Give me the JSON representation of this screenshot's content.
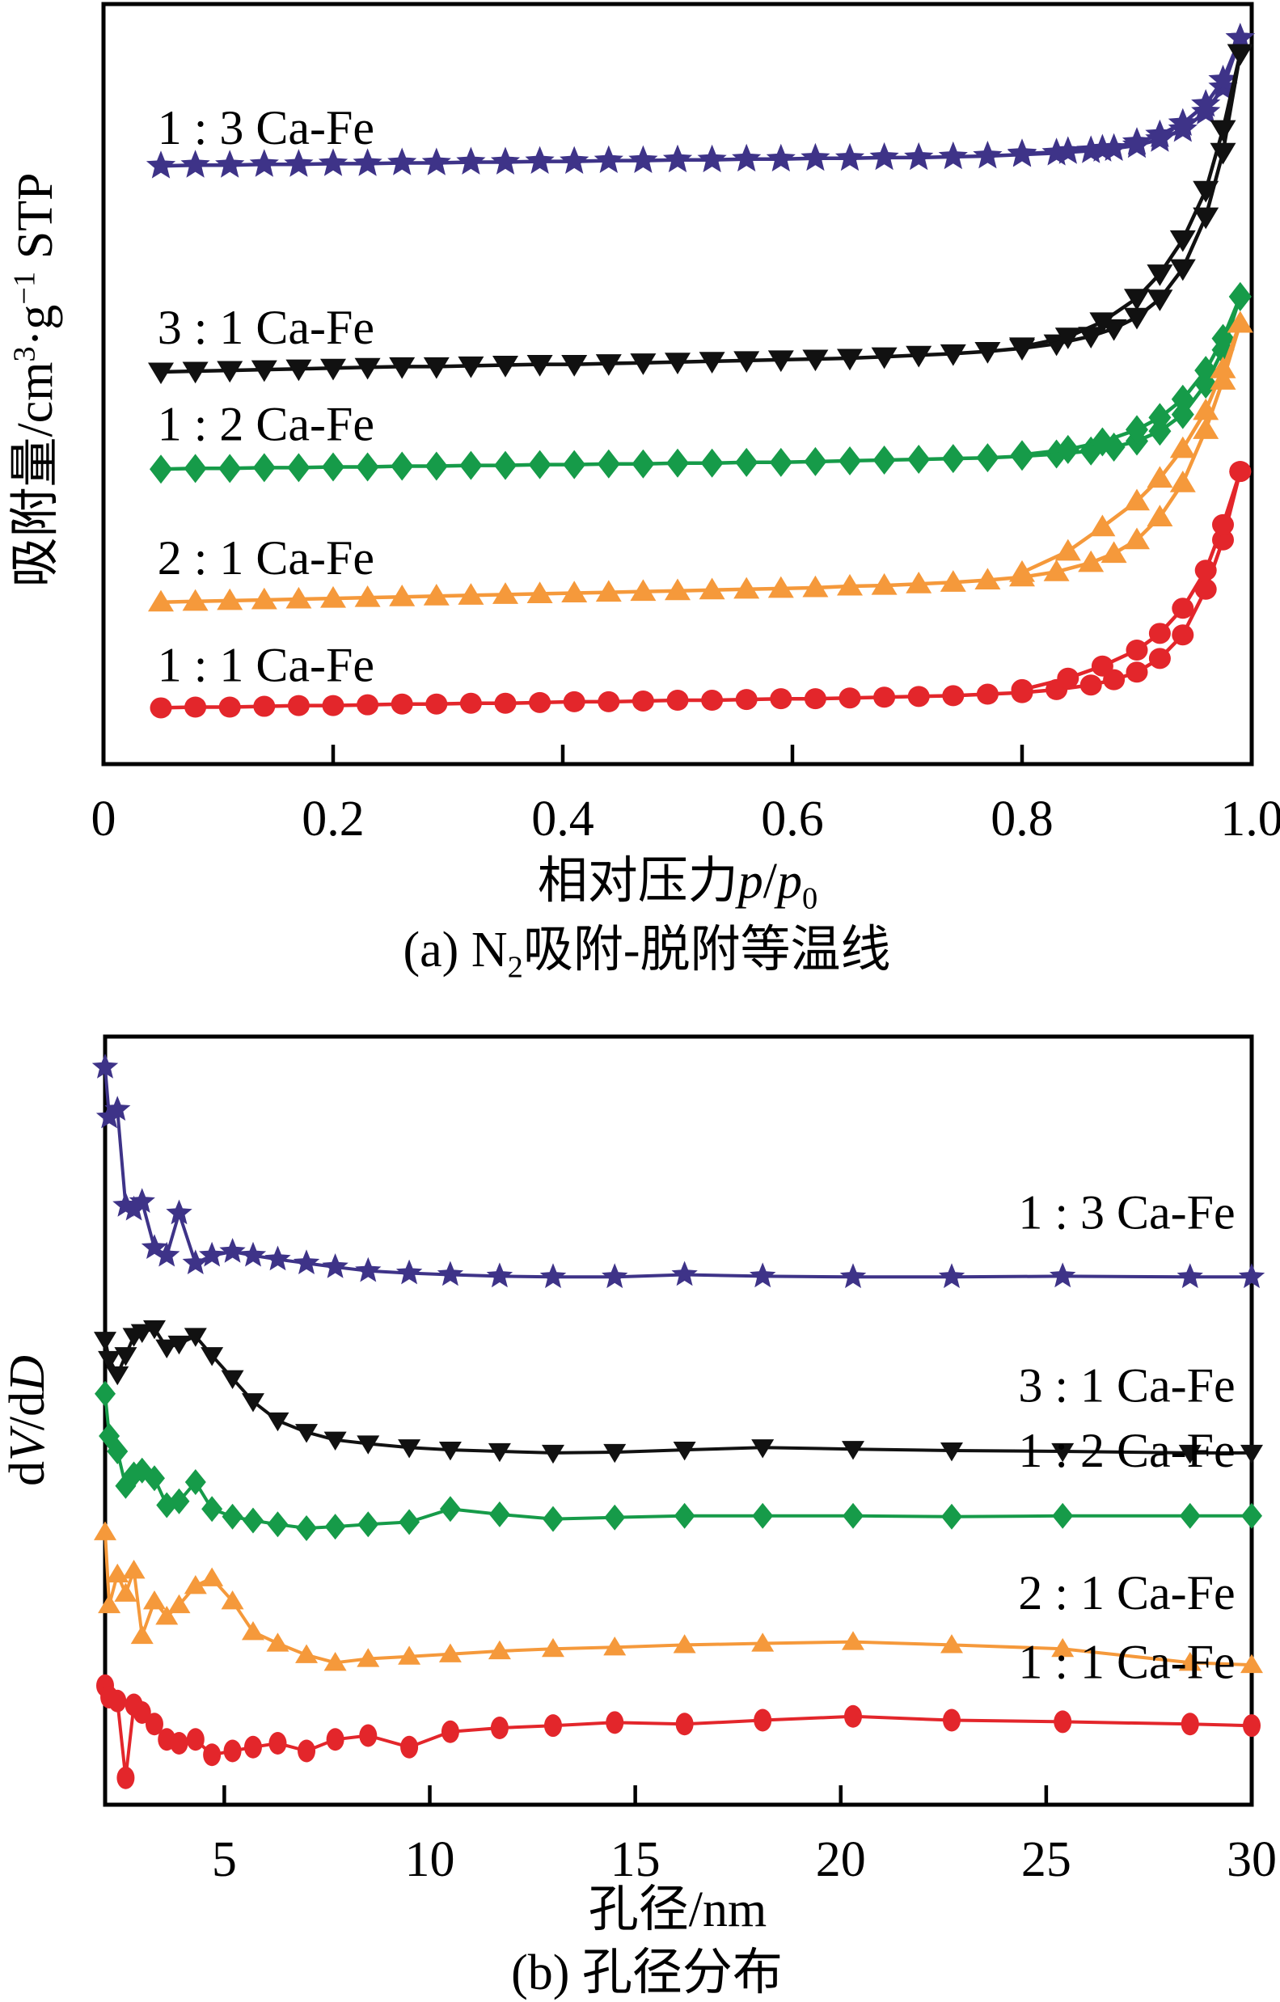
{
  "page": {
    "background": "#ffffff",
    "text_color": "#000000"
  },
  "chart_data": [
    {
      "type": "line",
      "id": "n2-isotherms",
      "caption": "(a) N2吸附-脱附等温线",
      "caption_segments": [
        {
          "t": "(a) N"
        },
        {
          "t": "2",
          "sub": true
        },
        {
          "t": "吸附-脱附等温线"
        }
      ],
      "xlabel": "相对压力p/p0",
      "xlabel_segments": [
        {
          "t": "相对压力"
        },
        {
          "t": "p",
          "i": true
        },
        {
          "t": "/"
        },
        {
          "t": "p",
          "i": true
        },
        {
          "t": "0",
          "sub": true
        }
      ],
      "ylabel": "吸附量/cm3·g−1 STP",
      "ylabel_segments": [
        {
          "t": "吸附量/cm"
        },
        {
          "t": "3",
          "sup": true
        },
        {
          "t": "·g"
        },
        {
          "t": "−1",
          "sup": true
        },
        {
          "t": " STP"
        }
      ],
      "y_units_note": "no numeric y scale shown; curves vertically offset, values in % of axis height",
      "xlim": [
        0,
        1.0
      ],
      "ylim": [
        0,
        100
      ],
      "xticks": [
        0,
        0.2,
        0.4,
        0.6,
        0.8,
        1.0
      ],
      "xtick_labels": [
        "0",
        "0.2",
        "0.4",
        "0.6",
        "0.8",
        "1.0"
      ],
      "yticks": [],
      "grid": false,
      "legend_position": "labels above each curve, left side",
      "x_adsorption": [
        0.05,
        0.08,
        0.11,
        0.14,
        0.17,
        0.2,
        0.23,
        0.26,
        0.29,
        0.32,
        0.35,
        0.38,
        0.41,
        0.44,
        0.47,
        0.5,
        0.53,
        0.56,
        0.59,
        0.62,
        0.65,
        0.68,
        0.71,
        0.74,
        0.77,
        0.8,
        0.83,
        0.86,
        0.88,
        0.9,
        0.92,
        0.94,
        0.96,
        0.975,
        0.99
      ],
      "x_desorption": [
        0.99,
        0.975,
        0.96,
        0.94,
        0.92,
        0.9,
        0.87,
        0.84,
        0.8
      ],
      "series": [
        {
          "name": "1 : 3 Ca-Fe",
          "color": "#3E3388",
          "marker": "star",
          "label_pos": {
            "x": 0.047,
            "y": 81.6
          },
          "y_adsorption": [
            78.7,
            78.8,
            78.8,
            78.9,
            78.9,
            79.0,
            79.0,
            79.1,
            79.1,
            79.2,
            79.2,
            79.3,
            79.3,
            79.4,
            79.4,
            79.5,
            79.5,
            79.6,
            79.6,
            79.7,
            79.7,
            79.8,
            79.8,
            79.9,
            80.0,
            80.2,
            80.4,
            80.7,
            81.0,
            81.4,
            82.2,
            83.5,
            85.8,
            89.0,
            95.5
          ],
          "y_desorption": [
            95.5,
            90.0,
            86.8,
            84.3,
            82.8,
            81.8,
            80.9,
            80.6,
            80.3
          ]
        },
        {
          "name": "3 : 1 Ca-Fe",
          "color": "#111111",
          "marker": "triangle-down",
          "label_pos": {
            "x": 0.047,
            "y": 55.3
          },
          "y_adsorption": [
            51.6,
            51.7,
            51.8,
            51.9,
            52.0,
            52.1,
            52.2,
            52.3,
            52.3,
            52.4,
            52.5,
            52.6,
            52.6,
            52.7,
            52.8,
            52.9,
            53.0,
            53.1,
            53.2,
            53.3,
            53.4,
            53.6,
            53.8,
            54.0,
            54.3,
            54.7,
            55.3,
            56.3,
            57.3,
            58.8,
            61.2,
            65.2,
            72.0,
            80.5,
            93.5
          ],
          "y_desorption": [
            93.5,
            83.5,
            75.5,
            69.0,
            64.5,
            61.3,
            58.2,
            56.2,
            54.9
          ]
        },
        {
          "name": "1 : 2 Ca-Fe",
          "color": "#169B49",
          "marker": "diamond",
          "label_pos": {
            "x": 0.047,
            "y": 42.6
          },
          "y_adsorption": [
            38.8,
            38.9,
            38.9,
            39.0,
            39.0,
            39.1,
            39.1,
            39.2,
            39.2,
            39.3,
            39.3,
            39.4,
            39.4,
            39.5,
            39.5,
            39.6,
            39.6,
            39.7,
            39.7,
            39.8,
            39.9,
            40.0,
            40.1,
            40.2,
            40.3,
            40.5,
            40.8,
            41.2,
            41.7,
            42.5,
            43.8,
            46.0,
            50.0,
            54.5,
            61.5
          ],
          "y_desorption": [
            61.5,
            56.0,
            51.8,
            48.0,
            45.6,
            44.0,
            42.4,
            41.4,
            40.7
          ]
        },
        {
          "name": "2 : 1 Ca-Fe",
          "color": "#F5993B",
          "marker": "triangle-up",
          "label_pos": {
            "x": 0.047,
            "y": 25.0
          },
          "y_adsorption": [
            21.3,
            21.4,
            21.5,
            21.6,
            21.7,
            21.8,
            21.9,
            22.0,
            22.1,
            22.2,
            22.3,
            22.4,
            22.5,
            22.6,
            22.7,
            22.8,
            22.9,
            23.0,
            23.1,
            23.2,
            23.4,
            23.5,
            23.7,
            23.9,
            24.2,
            24.6,
            25.3,
            26.5,
            27.7,
            29.5,
            32.5,
            37.0,
            44.0,
            50.5,
            58.0
          ],
          "y_desorption": [
            58.0,
            52.0,
            46.5,
            41.5,
            37.6,
            34.6,
            31.2,
            28.0,
            25.2
          ]
        },
        {
          "name": "1 : 1 Ca-Fe",
          "color": "#E3262B",
          "marker": "circle",
          "label_pos": {
            "x": 0.047,
            "y": 10.9
          },
          "y_adsorption": [
            7.4,
            7.5,
            7.5,
            7.6,
            7.7,
            7.7,
            7.8,
            7.9,
            7.9,
            8.0,
            8.0,
            8.1,
            8.2,
            8.2,
            8.3,
            8.4,
            8.4,
            8.5,
            8.6,
            8.6,
            8.7,
            8.8,
            8.9,
            9.0,
            9.2,
            9.4,
            9.8,
            10.4,
            11.1,
            12.1,
            13.9,
            17.0,
            23.0,
            29.5,
            38.5
          ],
          "y_desorption": [
            38.5,
            31.5,
            25.5,
            20.5,
            17.2,
            15.0,
            12.9,
            11.3,
            9.8
          ]
        }
      ]
    },
    {
      "type": "line",
      "id": "pore-size-distribution",
      "caption": "(b) 孔径分布",
      "xlabel": "孔径/nm",
      "ylabel": "dV/dD",
      "ylabel_segments": [
        {
          "t": "d"
        },
        {
          "t": "V",
          "i": true
        },
        {
          "t": "/d"
        },
        {
          "t": "D",
          "i": true
        }
      ],
      "y_units_note": "no numeric y scale shown; curves vertically offset, values in % of axis height",
      "xlim": [
        2.1,
        30
      ],
      "ylim": [
        0,
        100
      ],
      "xticks": [
        5,
        10,
        15,
        20,
        25,
        30
      ],
      "xtick_labels": [
        "5",
        "10",
        "15",
        "20",
        "25",
        "30"
      ],
      "yticks": [],
      "grid": false,
      "legend_position": "labels above each curve, right side",
      "x": [
        2.1,
        2.2,
        2.4,
        2.6,
        2.8,
        3.0,
        3.3,
        3.6,
        3.9,
        4.3,
        4.7,
        5.2,
        5.7,
        6.3,
        7.0,
        7.7,
        8.5,
        9.5,
        10.5,
        11.7,
        13.0,
        14.5,
        16.2,
        18.1,
        20.3,
        22.7,
        25.4,
        28.5,
        30.0
      ],
      "series": [
        {
          "name": "1 : 3 Ca-Fe",
          "color": "#3E3388",
          "marker": "star",
          "label_pos": {
            "x": 29.6,
            "y": 75.0
          },
          "y": [
            96.0,
            89.5,
            90.5,
            78.0,
            77.5,
            78.5,
            72.5,
            71.5,
            77.0,
            70.5,
            71.5,
            72.0,
            71.5,
            71.0,
            70.5,
            70.0,
            69.5,
            69.2,
            69.0,
            68.8,
            68.7,
            68.7,
            69.0,
            68.8,
            68.7,
            68.7,
            68.8,
            68.7,
            68.7
          ]
        },
        {
          "name": "3 : 1 Ca-Fe",
          "color": "#111111",
          "marker": "triangle-down",
          "label_pos": {
            "x": 29.6,
            "y": 52.5
          },
          "y": [
            60.5,
            58.0,
            56.0,
            58.5,
            61.0,
            61.5,
            62.0,
            59.5,
            60.0,
            61.0,
            58.5,
            55.5,
            52.5,
            50.0,
            48.5,
            47.5,
            47.0,
            46.5,
            46.2,
            46.0,
            45.8,
            45.9,
            46.2,
            46.5,
            46.3,
            46.1,
            46.0,
            45.8,
            45.8
          ]
        },
        {
          "name": "1 : 2 Ca-Fe",
          "color": "#169B49",
          "marker": "diamond",
          "label_pos": {
            "x": 29.6,
            "y": 44.0
          },
          "y": [
            53.5,
            48.0,
            46.0,
            41.5,
            43.0,
            43.5,
            42.5,
            39.0,
            39.5,
            42.0,
            38.5,
            37.5,
            37.0,
            36.5,
            36.0,
            36.2,
            36.5,
            36.8,
            38.5,
            37.8,
            37.2,
            37.4,
            37.6,
            37.6,
            37.6,
            37.5,
            37.6,
            37.6,
            37.6
          ]
        },
        {
          "name": "2 : 1 Ca-Fe",
          "color": "#F5993B",
          "marker": "triangle-up",
          "label_pos": {
            "x": 29.6,
            "y": 25.5
          },
          "y": [
            35.5,
            26.0,
            30.0,
            27.5,
            30.5,
            22.0,
            26.5,
            24.5,
            26.0,
            28.5,
            29.5,
            26.5,
            22.5,
            21.0,
            19.5,
            18.5,
            19.0,
            19.3,
            19.6,
            20.0,
            20.3,
            20.5,
            20.8,
            21.0,
            21.2,
            20.8,
            20.3,
            18.5,
            18.2
          ]
        },
        {
          "name": "1 : 1 Ca-Fe",
          "color": "#E3262B",
          "marker": "circle",
          "label_pos": {
            "x": 29.6,
            "y": 16.5
          },
          "y": [
            15.5,
            14.0,
            13.5,
            3.5,
            13.0,
            12.0,
            10.5,
            8.5,
            8.0,
            8.5,
            6.5,
            7.0,
            7.5,
            8.0,
            7.0,
            8.5,
            9.0,
            7.5,
            9.5,
            10.0,
            10.3,
            10.7,
            10.5,
            11.0,
            11.5,
            11.0,
            10.8,
            10.5,
            10.3
          ]
        }
      ]
    }
  ]
}
